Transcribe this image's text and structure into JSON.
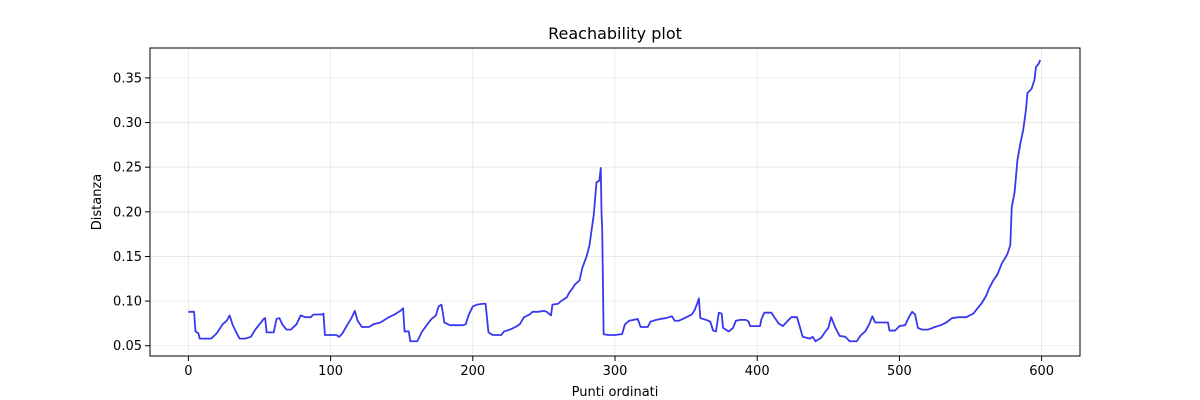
{
  "chart_data": {
    "type": "line",
    "title": "Reachability plot",
    "xlabel": "Punti ordinati",
    "ylabel": "Distanza",
    "xlim": [
      -27,
      627
    ],
    "ylim": [
      0.0385,
      0.3835
    ],
    "xticks": [
      0,
      100,
      200,
      300,
      400,
      500,
      600
    ],
    "yticks": [
      0.05,
      0.1,
      0.15,
      0.2,
      0.25,
      0.3,
      0.35
    ],
    "ytick_labels": [
      "0.05",
      "0.10",
      "0.15",
      "0.20",
      "0.25",
      "0.30",
      "0.35"
    ],
    "grid": true,
    "series": [
      {
        "color": "#2222ee",
        "points": [
          [
            0,
            0.088
          ],
          [
            4,
            0.088
          ],
          [
            5,
            0.066
          ],
          [
            7,
            0.064
          ],
          [
            8,
            0.058
          ],
          [
            16,
            0.058
          ],
          [
            20,
            0.064
          ],
          [
            24,
            0.074
          ],
          [
            27,
            0.078
          ],
          [
            29,
            0.084
          ],
          [
            31,
            0.074
          ],
          [
            33,
            0.067
          ],
          [
            36,
            0.058
          ],
          [
            40,
            0.058
          ],
          [
            44,
            0.06
          ],
          [
            47,
            0.068
          ],
          [
            50,
            0.074
          ],
          [
            53,
            0.08
          ],
          [
            54,
            0.081
          ],
          [
            55,
            0.065
          ],
          [
            60,
            0.065
          ],
          [
            62,
            0.08
          ],
          [
            64,
            0.081
          ],
          [
            66,
            0.074
          ],
          [
            69,
            0.068
          ],
          [
            72,
            0.068
          ],
          [
            76,
            0.074
          ],
          [
            79,
            0.084
          ],
          [
            82,
            0.082
          ],
          [
            86,
            0.082
          ],
          [
            88,
            0.085
          ],
          [
            94,
            0.085
          ],
          [
            95,
            0.086
          ],
          [
            96,
            0.062
          ],
          [
            104,
            0.062
          ],
          [
            106,
            0.06
          ],
          [
            108,
            0.063
          ],
          [
            112,
            0.074
          ],
          [
            115,
            0.082
          ],
          [
            117,
            0.089
          ],
          [
            119,
            0.078
          ],
          [
            122,
            0.071
          ],
          [
            127,
            0.071
          ],
          [
            130,
            0.074
          ],
          [
            135,
            0.076
          ],
          [
            137,
            0.078
          ],
          [
            141,
            0.082
          ],
          [
            145,
            0.085
          ],
          [
            149,
            0.089
          ],
          [
            151,
            0.092
          ],
          [
            152,
            0.066
          ],
          [
            155,
            0.066
          ],
          [
            156,
            0.055
          ],
          [
            161,
            0.055
          ],
          [
            164,
            0.065
          ],
          [
            168,
            0.074
          ],
          [
            171,
            0.08
          ],
          [
            174,
            0.084
          ],
          [
            176,
            0.094
          ],
          [
            178,
            0.096
          ],
          [
            180,
            0.076
          ],
          [
            184,
            0.073
          ],
          [
            187,
            0.073
          ],
          [
            193,
            0.073
          ],
          [
            195,
            0.074
          ],
          [
            197,
            0.084
          ],
          [
            200,
            0.094
          ],
          [
            203,
            0.096
          ],
          [
            207,
            0.097
          ],
          [
            209,
            0.097
          ],
          [
            211,
            0.065
          ],
          [
            214,
            0.062
          ],
          [
            220,
            0.062
          ],
          [
            222,
            0.066
          ],
          [
            226,
            0.068
          ],
          [
            230,
            0.071
          ],
          [
            233,
            0.074
          ],
          [
            236,
            0.082
          ],
          [
            240,
            0.085
          ],
          [
            242,
            0.088
          ],
          [
            246,
            0.088
          ],
          [
            250,
            0.089
          ],
          [
            252,
            0.088
          ],
          [
            255,
            0.084
          ],
          [
            256,
            0.096
          ],
          [
            260,
            0.097
          ],
          [
            262,
            0.1
          ],
          [
            266,
            0.104
          ],
          [
            268,
            0.11
          ],
          [
            270,
            0.114
          ],
          [
            272,
            0.119
          ],
          [
            275,
            0.123
          ],
          [
            277,
            0.137
          ],
          [
            280,
            0.15
          ],
          [
            282,
            0.162
          ],
          [
            285,
            0.196
          ],
          [
            287,
            0.233
          ],
          [
            289,
            0.235
          ],
          [
            290,
            0.249
          ],
          [
            290.5,
            0.2
          ],
          [
            291,
            0.18
          ],
          [
            292,
            0.063
          ],
          [
            295,
            0.062
          ],
          [
            300,
            0.062
          ],
          [
            305,
            0.063
          ],
          [
            307,
            0.074
          ],
          [
            310,
            0.078
          ],
          [
            316,
            0.08
          ],
          [
            318,
            0.071
          ],
          [
            323,
            0.071
          ],
          [
            325,
            0.077
          ],
          [
            329,
            0.079
          ],
          [
            332,
            0.08
          ],
          [
            336,
            0.081
          ],
          [
            340,
            0.083
          ],
          [
            342,
            0.078
          ],
          [
            345,
            0.078
          ],
          [
            349,
            0.081
          ],
          [
            354,
            0.085
          ],
          [
            356,
            0.09
          ],
          [
            358,
            0.098
          ],
          [
            359,
            0.103
          ],
          [
            360,
            0.081
          ],
          [
            364,
            0.079
          ],
          [
            367,
            0.077
          ],
          [
            369,
            0.067
          ],
          [
            371,
            0.066
          ],
          [
            373,
            0.087
          ],
          [
            375,
            0.086
          ],
          [
            376,
            0.07
          ],
          [
            380,
            0.066
          ],
          [
            383,
            0.07
          ],
          [
            385,
            0.078
          ],
          [
            388,
            0.079
          ],
          [
            392,
            0.079
          ],
          [
            394,
            0.077
          ],
          [
            395,
            0.072
          ],
          [
            402,
            0.072
          ],
          [
            403,
            0.08
          ],
          [
            405,
            0.087
          ],
          [
            410,
            0.087
          ],
          [
            412,
            0.082
          ],
          [
            415,
            0.075
          ],
          [
            418,
            0.072
          ],
          [
            421,
            0.077
          ],
          [
            424,
            0.082
          ],
          [
            428,
            0.082
          ],
          [
            430,
            0.071
          ],
          [
            432,
            0.06
          ],
          [
            437,
            0.058
          ],
          [
            439,
            0.06
          ],
          [
            441,
            0.055
          ],
          [
            445,
            0.059
          ],
          [
            448,
            0.066
          ],
          [
            450,
            0.07
          ],
          [
            452,
            0.082
          ],
          [
            455,
            0.07
          ],
          [
            458,
            0.061
          ],
          [
            462,
            0.06
          ],
          [
            465,
            0.055
          ],
          [
            470,
            0.055
          ],
          [
            473,
            0.062
          ],
          [
            476,
            0.066
          ],
          [
            479,
            0.075
          ],
          [
            481,
            0.083
          ],
          [
            483,
            0.076
          ],
          [
            486,
            0.076
          ],
          [
            492,
            0.076
          ],
          [
            493,
            0.067
          ],
          [
            497,
            0.067
          ],
          [
            500,
            0.072
          ],
          [
            504,
            0.073
          ],
          [
            507,
            0.083
          ],
          [
            509,
            0.088
          ],
          [
            511,
            0.085
          ],
          [
            513,
            0.07
          ],
          [
            516,
            0.068
          ],
          [
            520,
            0.068
          ],
          [
            525,
            0.071
          ],
          [
            529,
            0.073
          ],
          [
            533,
            0.076
          ],
          [
            537,
            0.081
          ],
          [
            542,
            0.082
          ],
          [
            547,
            0.082
          ],
          [
            552,
            0.086
          ],
          [
            555,
            0.092
          ],
          [
            558,
            0.098
          ],
          [
            561,
            0.106
          ],
          [
            563,
            0.114
          ],
          [
            566,
            0.123
          ],
          [
            569,
            0.13
          ],
          [
            572,
            0.142
          ],
          [
            575,
            0.15
          ],
          [
            576,
            0.153
          ],
          [
            578,
            0.163
          ],
          [
            579,
            0.205
          ],
          [
            581,
            0.222
          ],
          [
            583,
            0.258
          ],
          [
            585,
            0.276
          ],
          [
            587,
            0.291
          ],
          [
            589,
            0.314
          ],
          [
            590,
            0.333
          ],
          [
            593,
            0.338
          ],
          [
            595,
            0.348
          ],
          [
            596,
            0.362
          ],
          [
            598,
            0.366
          ],
          [
            599,
            0.37
          ]
        ]
      }
    ]
  }
}
